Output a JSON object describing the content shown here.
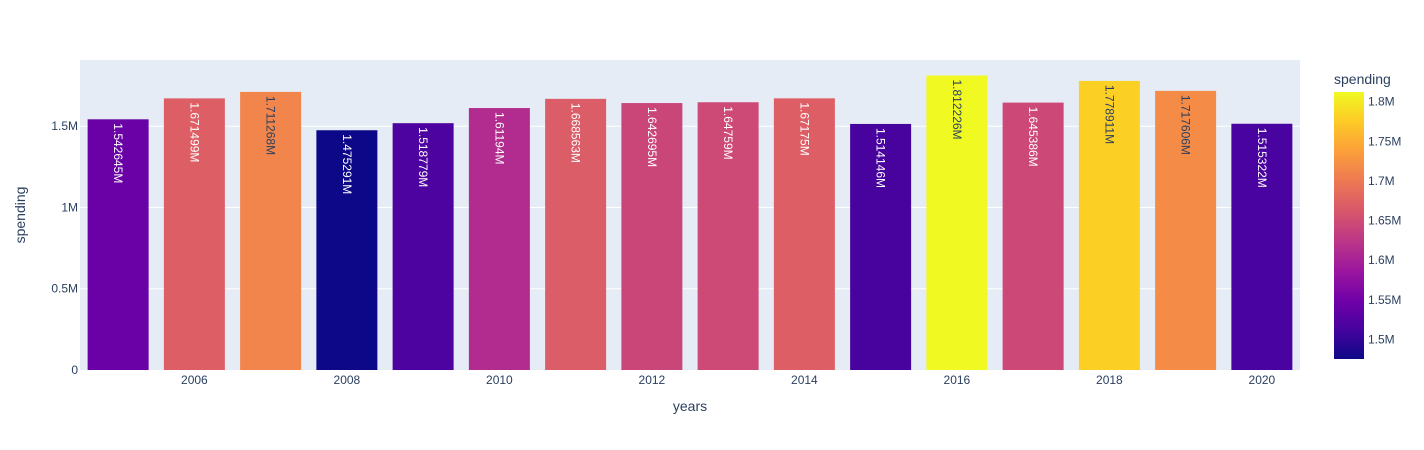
{
  "chart_data": {
    "type": "bar",
    "x": [
      2005,
      2006,
      2007,
      2008,
      2009,
      2010,
      2011,
      2012,
      2013,
      2014,
      2015,
      2016,
      2017,
      2018,
      2019,
      2020
    ],
    "values": [
      1542645,
      1671499,
      1711268,
      1475291,
      1518779,
      1611940,
      1668563,
      1642695,
      1647590,
      1671750,
      1514146,
      1812226,
      1645386,
      1778911,
      1717606,
      1515322
    ],
    "labels": [
      "1.542645M",
      "1.671499M",
      "1.711268M",
      "1.475291M",
      "1.518779M",
      "1.61194M",
      "1.668563M",
      "1.642695M",
      "1.64759M",
      "1.67175M",
      "1.514146M",
      "1.812226M",
      "1.645386M",
      "1.778911M",
      "1.717606M",
      "1.515322M"
    ],
    "xlabel": "years",
    "ylabel": "spending",
    "x_ticks": [
      "2006",
      "2008",
      "2010",
      "2012",
      "2014",
      "2016",
      "2018",
      "2020"
    ],
    "x_tick_values": [
      2006,
      2008,
      2010,
      2012,
      2014,
      2016,
      2018,
      2020
    ],
    "y_ticks": [
      "0",
      "0.5M",
      "1M",
      "1.5M"
    ],
    "y_tick_values": [
      0,
      500000,
      1000000,
      1500000
    ],
    "ylim": [
      0,
      1907606
    ],
    "xlim": [
      2004.5,
      2020.5
    ],
    "grid": true,
    "colorbar": {
      "title": "spending",
      "ticks": [
        "1.5M",
        "1.55M",
        "1.6M",
        "1.65M",
        "1.7M",
        "1.75M",
        "1.8M"
      ],
      "tick_values": [
        1500000,
        1550000,
        1600000,
        1650000,
        1700000,
        1750000,
        1800000
      ],
      "range": [
        1475291,
        1812226
      ],
      "colorscale": [
        "#0d0887",
        "#46039f",
        "#7201a8",
        "#9c179e",
        "#bd3786",
        "#d8576b",
        "#ed7953",
        "#fb9f3a",
        "#fdca26",
        "#f0f921"
      ]
    },
    "plot_bgcolor": "#e5ecf6",
    "text_dark": "#2a3f5f"
  }
}
